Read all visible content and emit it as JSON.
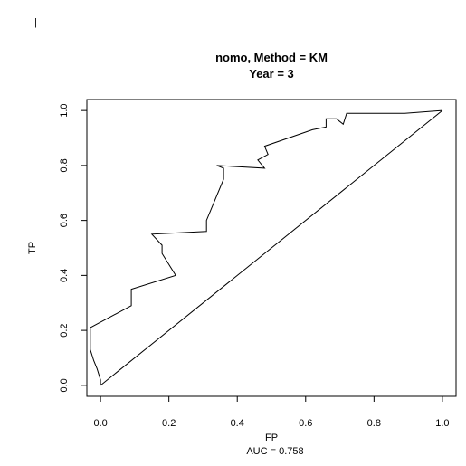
{
  "chart_data": {
    "type": "line",
    "title_line1": "nomo, Method = KM",
    "title_line2": "Year = 3",
    "xlabel": "FP",
    "ylabel": "TP",
    "auc_text": "AUC =  0.758",
    "xlim": [
      -0.04,
      1.04
    ],
    "ylim": [
      -0.04,
      1.04
    ],
    "x_ticks": [
      0.0,
      0.2,
      0.4,
      0.6,
      0.8,
      1.0
    ],
    "x_tick_labels": [
      "0.0",
      "0.2",
      "0.4",
      "0.6",
      "0.8",
      "1.0"
    ],
    "y_ticks": [
      0.0,
      0.2,
      0.4,
      0.6,
      0.8,
      1.0
    ],
    "y_tick_labels": [
      "0.0",
      "0.2",
      "0.4",
      "0.6",
      "0.8",
      "1.0"
    ],
    "grid": false,
    "reference_line": {
      "x": [
        0,
        1
      ],
      "y": [
        0,
        1
      ]
    },
    "series": [
      {
        "x": [
          0.0,
          0.0,
          -0.01,
          -0.02,
          -0.03,
          -0.03,
          0.09,
          0.09,
          0.22,
          0.18,
          0.18,
          0.15,
          0.31,
          0.31,
          0.36,
          0.36,
          0.34,
          0.48,
          0.46,
          0.49,
          0.48,
          0.62,
          0.66,
          0.66,
          0.69,
          0.71,
          0.72,
          0.89,
          1.0
        ],
        "y": [
          0.0,
          0.02,
          0.06,
          0.09,
          0.13,
          0.21,
          0.29,
          0.35,
          0.4,
          0.48,
          0.51,
          0.55,
          0.56,
          0.6,
          0.75,
          0.79,
          0.8,
          0.79,
          0.82,
          0.84,
          0.87,
          0.93,
          0.94,
          0.97,
          0.97,
          0.95,
          0.99,
          0.99,
          1.0
        ]
      }
    ]
  }
}
